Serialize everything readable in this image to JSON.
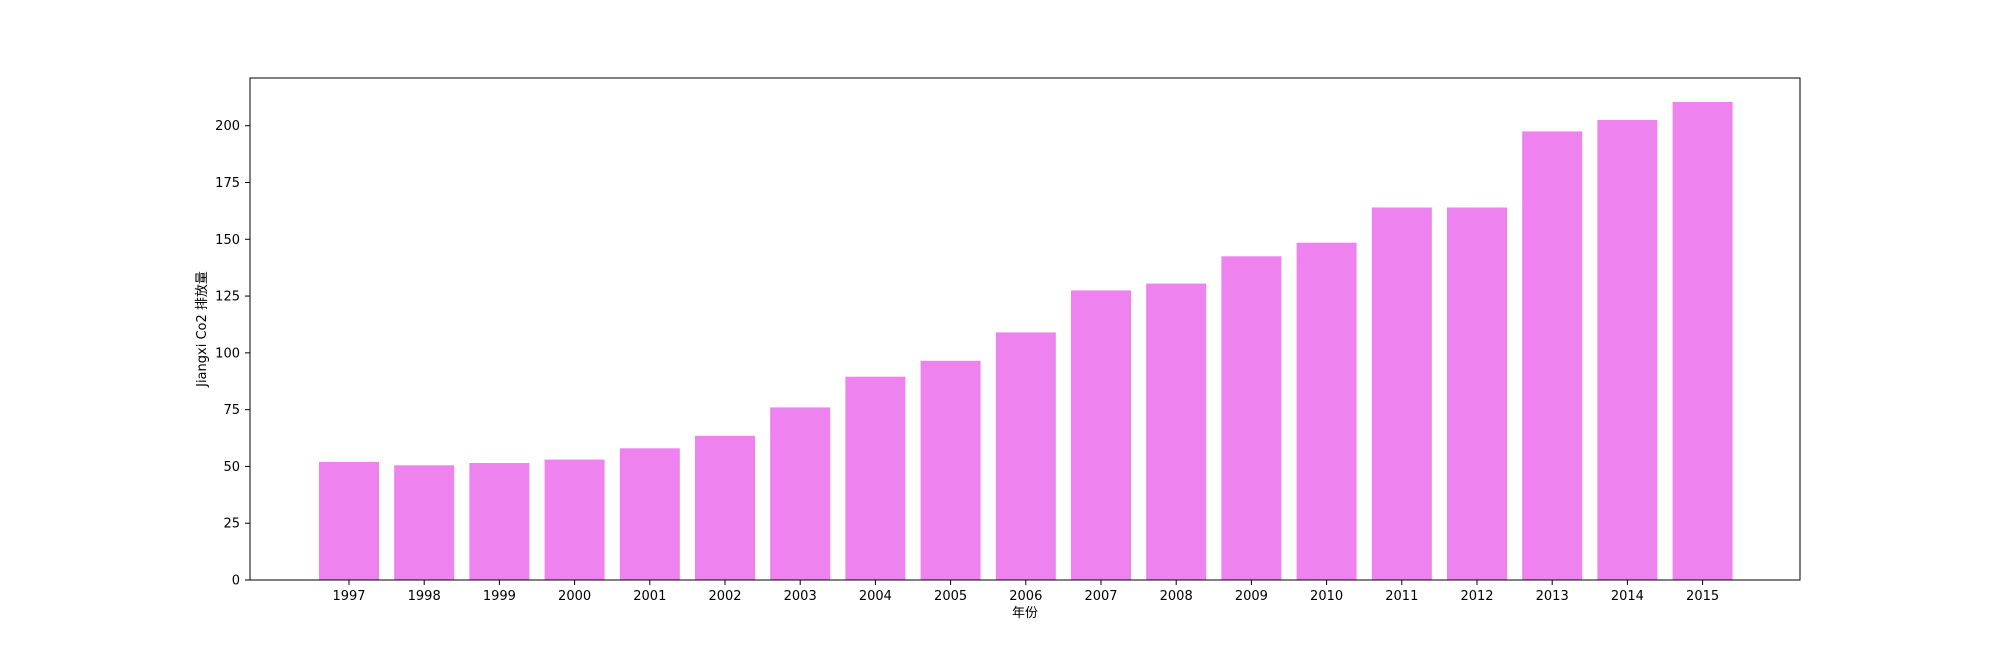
{
  "chart_data": {
    "type": "bar",
    "title": "",
    "xlabel": "年份",
    "ylabel": "Jiangxi Co2 排放量",
    "categories": [
      "1997",
      "1998",
      "1999",
      "2000",
      "2001",
      "2002",
      "2003",
      "2004",
      "2005",
      "2006",
      "2007",
      "2008",
      "2009",
      "2010",
      "2011",
      "2012",
      "2013",
      "2014",
      "2015"
    ],
    "values": [
      52.0,
      50.5,
      51.5,
      53.0,
      58.0,
      63.5,
      76.0,
      89.5,
      96.5,
      109.0,
      127.5,
      130.5,
      142.5,
      148.5,
      164.0,
      164.0,
      197.5,
      202.5,
      210.5
    ],
    "ylim": [
      0,
      221
    ],
    "yticks": [
      0,
      25,
      50,
      75,
      100,
      125,
      150,
      175,
      200
    ],
    "bar_color": "#ee82ee",
    "grid": false,
    "legend": "none"
  }
}
